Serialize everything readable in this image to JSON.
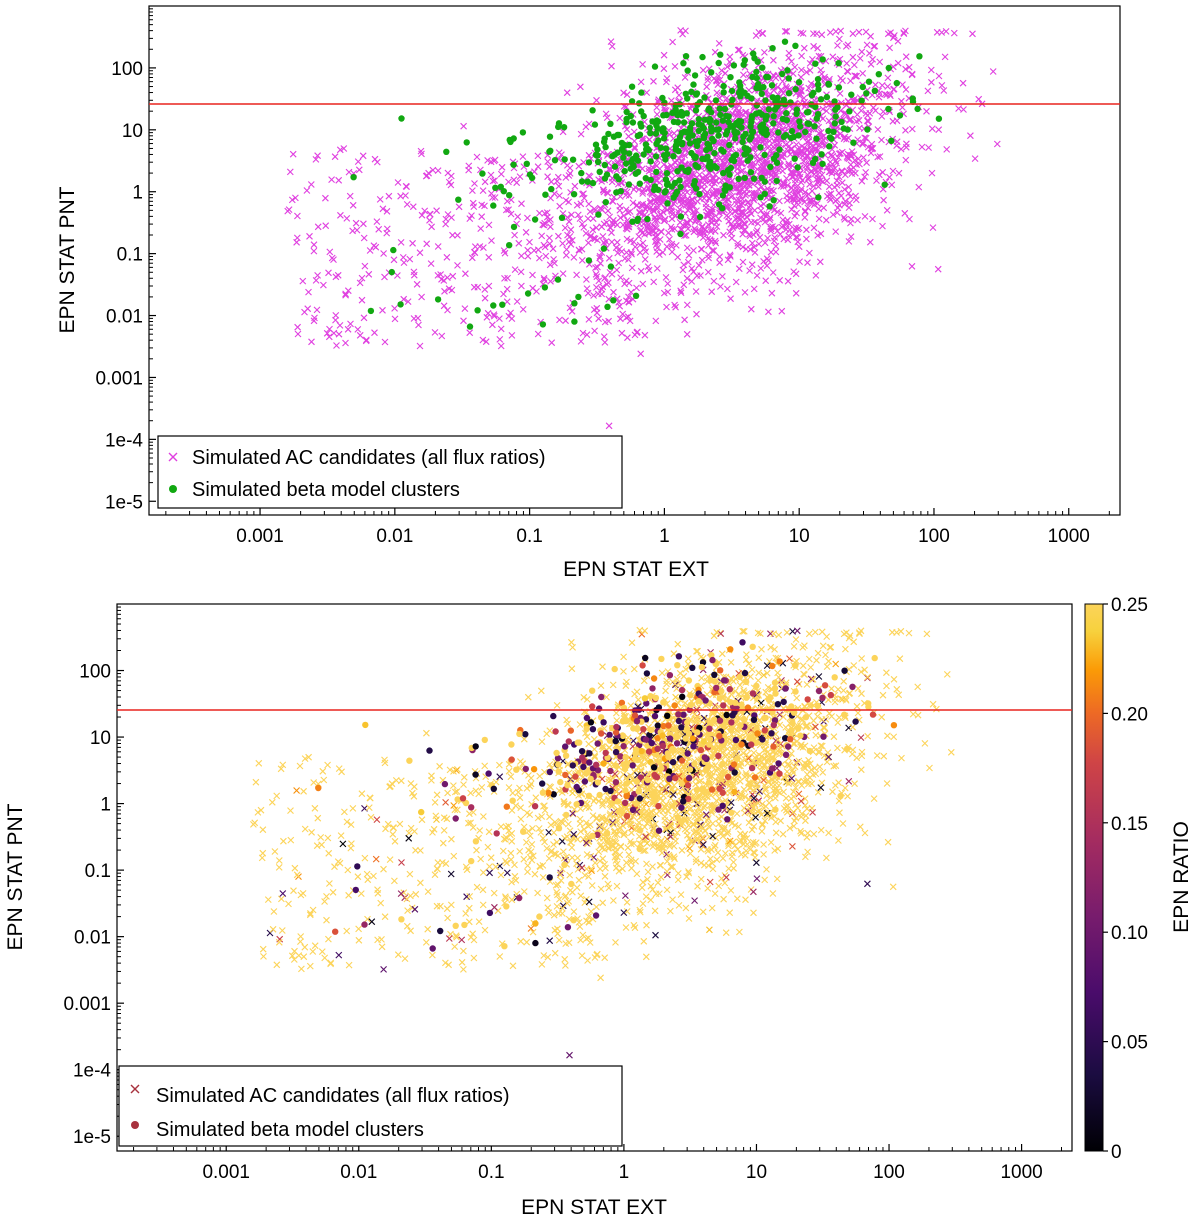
{
  "chart_data": [
    {
      "type": "scatter",
      "panel": "top",
      "xlabel": "EPN STAT EXT",
      "ylabel": "EPN STAT PNT",
      "xscale": "log",
      "yscale": "log",
      "xlim": [
        0.00015,
        2400
      ],
      "ylim": [
        6e-06,
        1000
      ],
      "x_ticks": [
        {
          "value": 0.001,
          "label": "0.001"
        },
        {
          "value": 0.01,
          "label": "0.01"
        },
        {
          "value": 0.1,
          "label": "0.1"
        },
        {
          "value": 1,
          "label": "1"
        },
        {
          "value": 10,
          "label": "10"
        },
        {
          "value": 100,
          "label": "100"
        },
        {
          "value": 1000,
          "label": "1000"
        }
      ],
      "y_ticks": [
        {
          "value": 1e-05,
          "label": "1e-5"
        },
        {
          "value": 0.0001,
          "label": "1e-4"
        },
        {
          "value": 0.001,
          "label": "0.001"
        },
        {
          "value": 0.01,
          "label": "0.01"
        },
        {
          "value": 0.1,
          "label": "0.1"
        },
        {
          "value": 1,
          "label": "1"
        },
        {
          "value": 10,
          "label": "10"
        },
        {
          "value": 100,
          "label": "100"
        }
      ],
      "threshold_line": {
        "y": 20,
        "color": "#e8231e"
      },
      "legend_position": "bottom-left",
      "series": [
        {
          "name": "Simulated AC candidates (all flux ratios)",
          "marker": "x",
          "color": "#e040e0"
        },
        {
          "name": "Simulated beta model clusters",
          "marker": "circle",
          "color": "#11a811"
        }
      ]
    },
    {
      "type": "scatter",
      "panel": "bottom",
      "xlabel": "EPN STAT EXT",
      "ylabel": "EPN STAT PNT",
      "xscale": "log",
      "yscale": "log",
      "xlim": [
        0.00015,
        2400
      ],
      "ylim": [
        6e-06,
        1000
      ],
      "x_ticks": [
        {
          "value": 0.001,
          "label": "0.001"
        },
        {
          "value": 0.01,
          "label": "0.01"
        },
        {
          "value": 0.1,
          "label": "0.1"
        },
        {
          "value": 1,
          "label": "1"
        },
        {
          "value": 10,
          "label": "10"
        },
        {
          "value": 100,
          "label": "100"
        },
        {
          "value": 1000,
          "label": "1000"
        }
      ],
      "y_ticks": [
        {
          "value": 1e-05,
          "label": "1e-5"
        },
        {
          "value": 0.0001,
          "label": "1e-4"
        },
        {
          "value": 0.001,
          "label": "0.001"
        },
        {
          "value": 0.01,
          "label": "0.01"
        },
        {
          "value": 0.1,
          "label": "0.1"
        },
        {
          "value": 1,
          "label": "1"
        },
        {
          "value": 10,
          "label": "10"
        },
        {
          "value": 100,
          "label": "100"
        }
      ],
      "threshold_line": {
        "y": 20,
        "color": "#e8231e"
      },
      "legend_position": "bottom-left",
      "color_by": "EPN RATIO",
      "colorbar": {
        "label": "EPN RATIO",
        "min": 0,
        "max": 0.25,
        "colormap": "inferno",
        "ticks": [
          {
            "value": 0,
            "label": "0"
          },
          {
            "value": 0.05,
            "label": "0.05"
          },
          {
            "value": 0.1,
            "label": "0.10"
          },
          {
            "value": 0.15,
            "label": "0.15"
          },
          {
            "value": 0.2,
            "label": "0.20"
          },
          {
            "value": 0.25,
            "label": "0.25"
          }
        ]
      },
      "series": [
        {
          "name": "Simulated AC candidates (all flux ratios)",
          "marker": "x",
          "color": "#a8323e"
        },
        {
          "name": "Simulated beta model clusters",
          "marker": "circle",
          "color": "#a8323e"
        }
      ]
    }
  ]
}
